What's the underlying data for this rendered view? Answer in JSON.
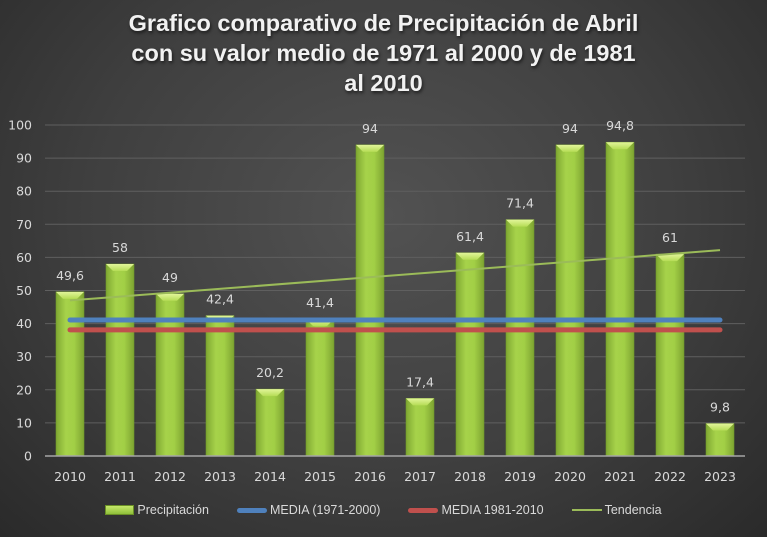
{
  "chart_data": {
    "type": "bar",
    "title_lines": [
      "Grafico comparativo de Precipitación de Abril",
      "con su valor medio de 1971 al 2000 y de 1981",
      "al 2010"
    ],
    "xlabel": "",
    "ylabel": "",
    "ylim": [
      0,
      100
    ],
    "yticks": [
      "0",
      "10",
      "20",
      "30",
      "40",
      "50",
      "60",
      "70",
      "80",
      "90",
      "100"
    ],
    "ytick_values": [
      0,
      10,
      20,
      30,
      40,
      50,
      60,
      70,
      80,
      90,
      100
    ],
    "grid": true,
    "legend_position": "bottom",
    "categories": [
      "2010",
      "2011",
      "2012",
      "2013",
      "2014",
      "2015",
      "2016",
      "2017",
      "2018",
      "2019",
      "2020",
      "2021",
      "2022",
      "2023"
    ],
    "series": [
      {
        "name": "Precipitación",
        "type": "bar",
        "color": "#9bc940",
        "values": [
          49.6,
          58,
          49,
          42.4,
          20.2,
          41.4,
          94,
          17.4,
          61.4,
          71.4,
          94,
          94.8,
          61,
          9.8
        ],
        "data_labels": [
          "49,6",
          "58",
          "49",
          "42,4",
          "20,2",
          "41,4",
          "94",
          "17,4",
          "61,4",
          "71,4",
          "94",
          "94,8",
          "61",
          "9,8"
        ]
      },
      {
        "name": "MEDIA (1971-2000)",
        "type": "line",
        "color": "#4f81bd",
        "values": [
          41.1,
          41.1,
          41.1,
          41.1,
          41.1,
          41.1,
          41.1,
          41.1,
          41.1,
          41.1,
          41.1,
          41.1,
          41.1,
          41.1
        ]
      },
      {
        "name": "MEDIA 1981-2010",
        "type": "line",
        "color": "#c0504d",
        "values": [
          38.1,
          38.1,
          38.1,
          38.1,
          38.1,
          38.1,
          38.1,
          38.1,
          38.1,
          38.1,
          38.1,
          38.1,
          38.1,
          38.1
        ]
      },
      {
        "name": "Tendencia",
        "type": "trendline",
        "color": "#9bbb59",
        "start": 47.0,
        "end": 62.2
      }
    ]
  },
  "legend": {
    "items": [
      {
        "label": "Precipitación"
      },
      {
        "label": "MEDIA (1971-2000)"
      },
      {
        "label": "MEDIA 1981-2010"
      },
      {
        "label": "Tendencia"
      }
    ]
  }
}
